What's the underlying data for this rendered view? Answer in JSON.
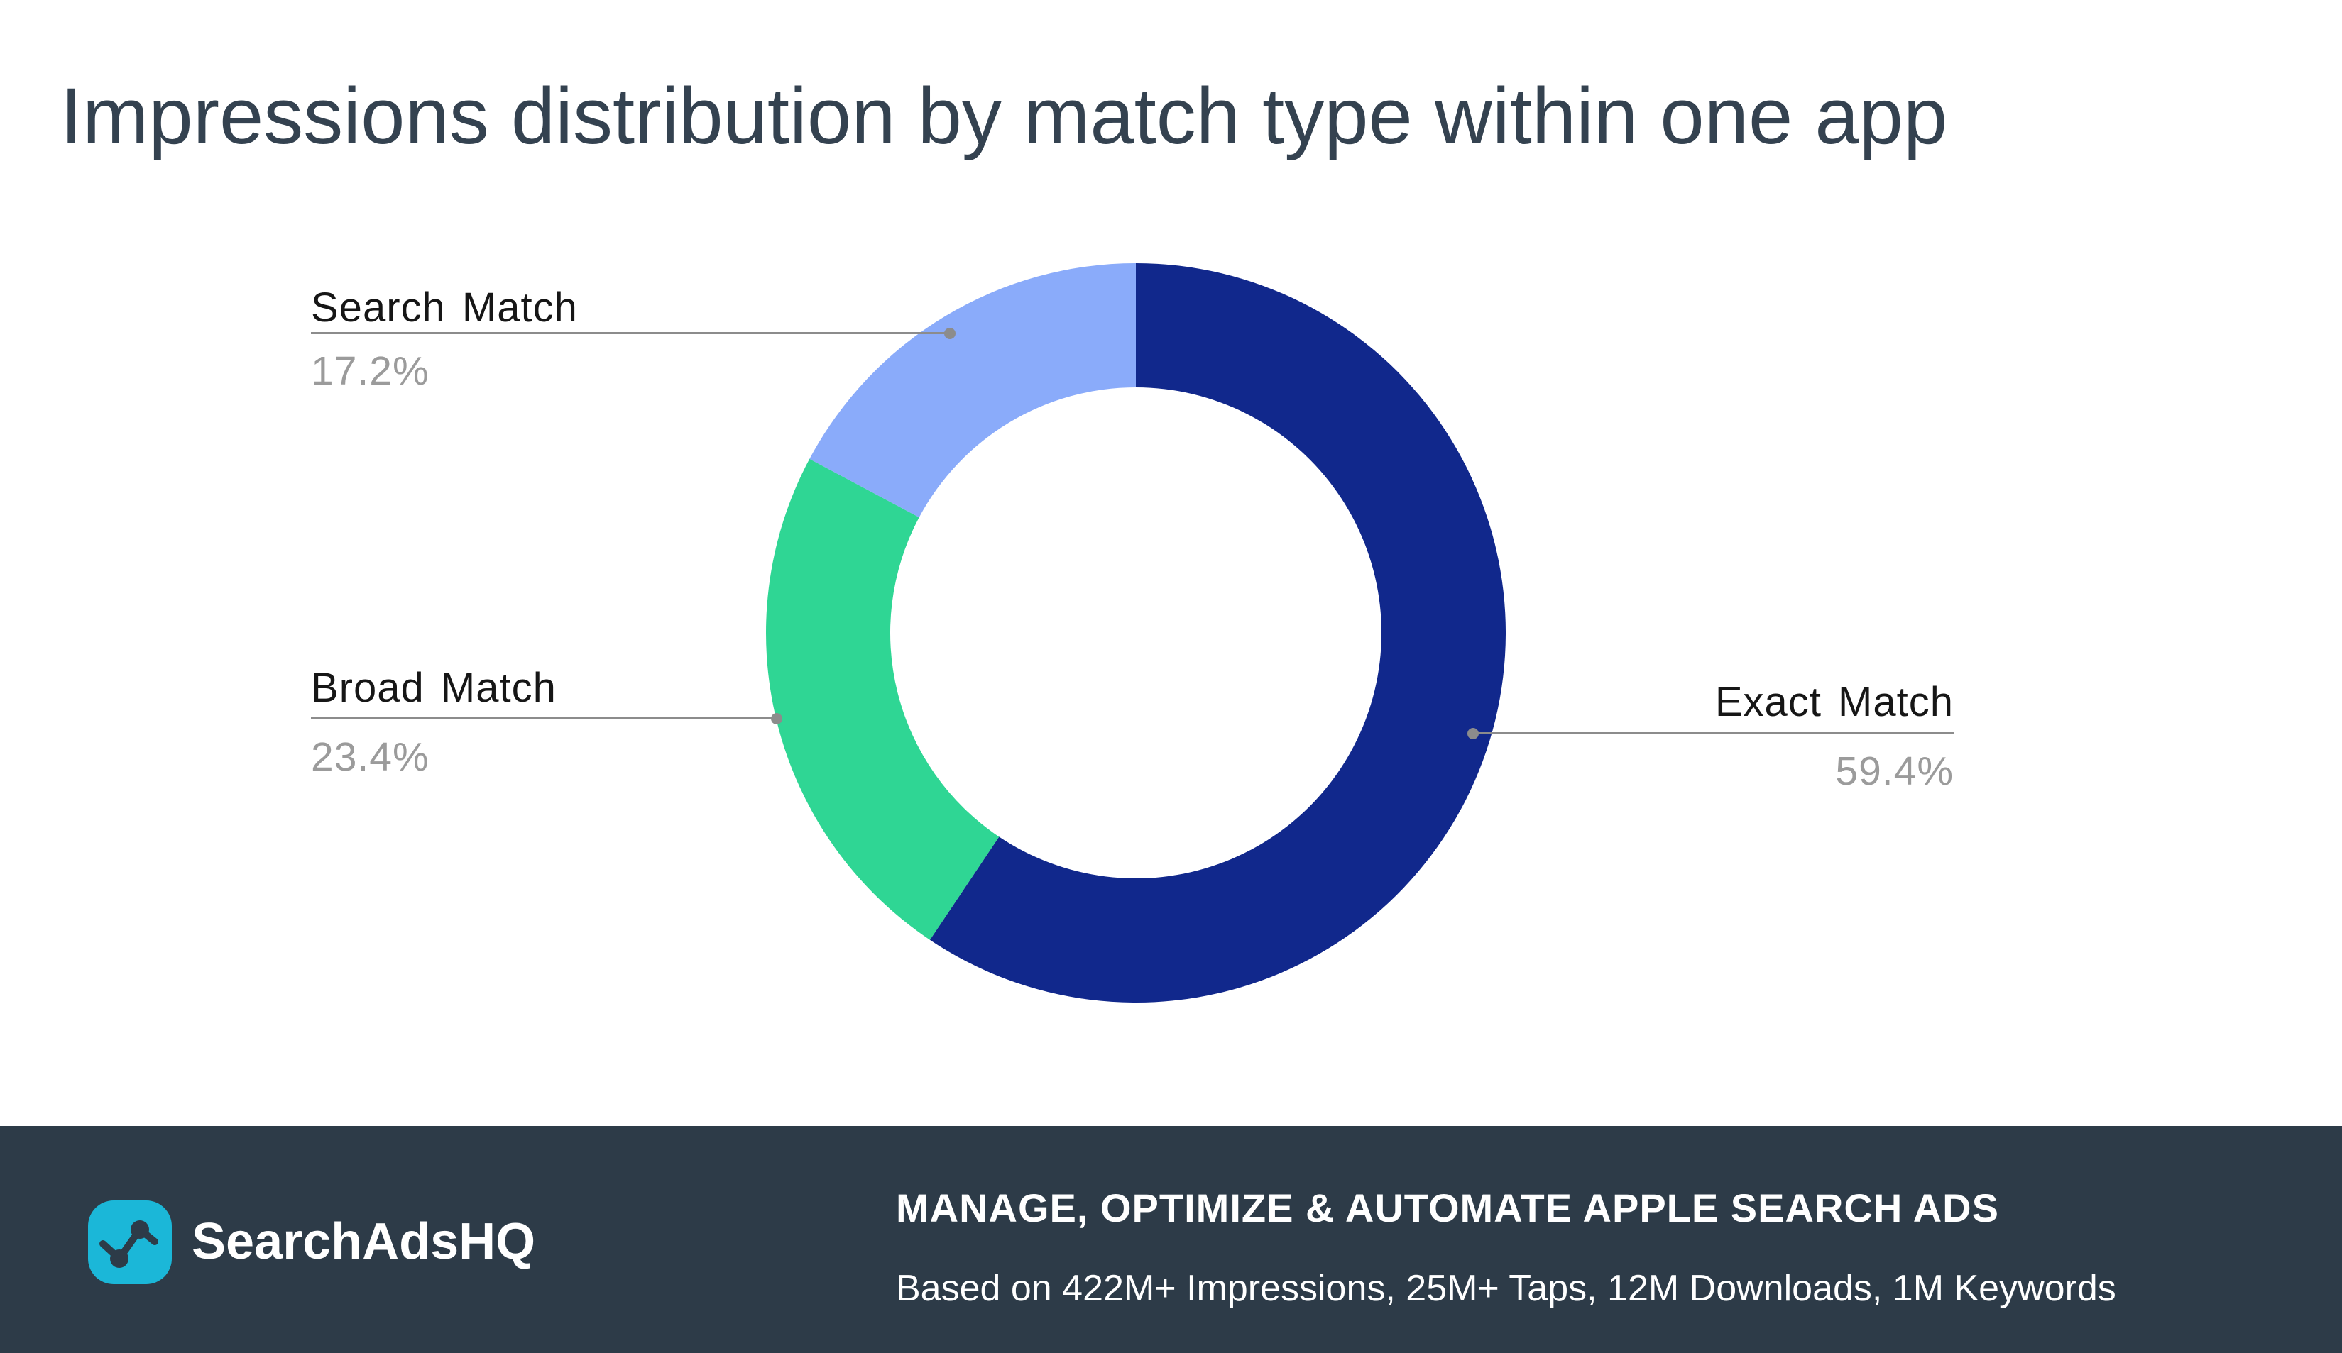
{
  "title": "Impressions distribution by match type within one app",
  "chart_data": {
    "type": "pie",
    "donut": true,
    "inner_radius_ratio": 0.664,
    "start_angle_deg": 0,
    "direction": "clockwise",
    "title": "Impressions distribution by match type within one app",
    "unit": "%",
    "legend": "none",
    "slices": [
      {
        "label": "Exact Match",
        "value": 59.4,
        "color": "#11288C"
      },
      {
        "label": "Broad Match",
        "value": 23.4,
        "color": "#2FD694"
      },
      {
        "label": "Search Match",
        "value": 17.2,
        "color": "#8AABFA"
      }
    ]
  },
  "callouts": {
    "search": {
      "title": "Search Match",
      "percent": "17.2%"
    },
    "broad": {
      "title": "Broad Match",
      "percent": "23.4%"
    },
    "exact": {
      "title": "Exact Match",
      "percent": "59.4%"
    }
  },
  "footer": {
    "brand": "SearchAdsHQ",
    "logo_icon": "line-chart-icon",
    "headline": "MANAGE, OPTIMIZE & AUTOMATE APPLE SEARCH ADS",
    "subline": "Based on 422M+ Impressions, 25M+ Taps, 12M Downloads, 1M Keywords"
  },
  "colors": {
    "title": "#344250",
    "label": "#161616",
    "percent": "#9B9B9B",
    "leader": "#8C8C8C",
    "footer_bg": "#2D3B48",
    "footer_text": "#FFFFFF",
    "logo_bg": "#1BB7D8"
  }
}
